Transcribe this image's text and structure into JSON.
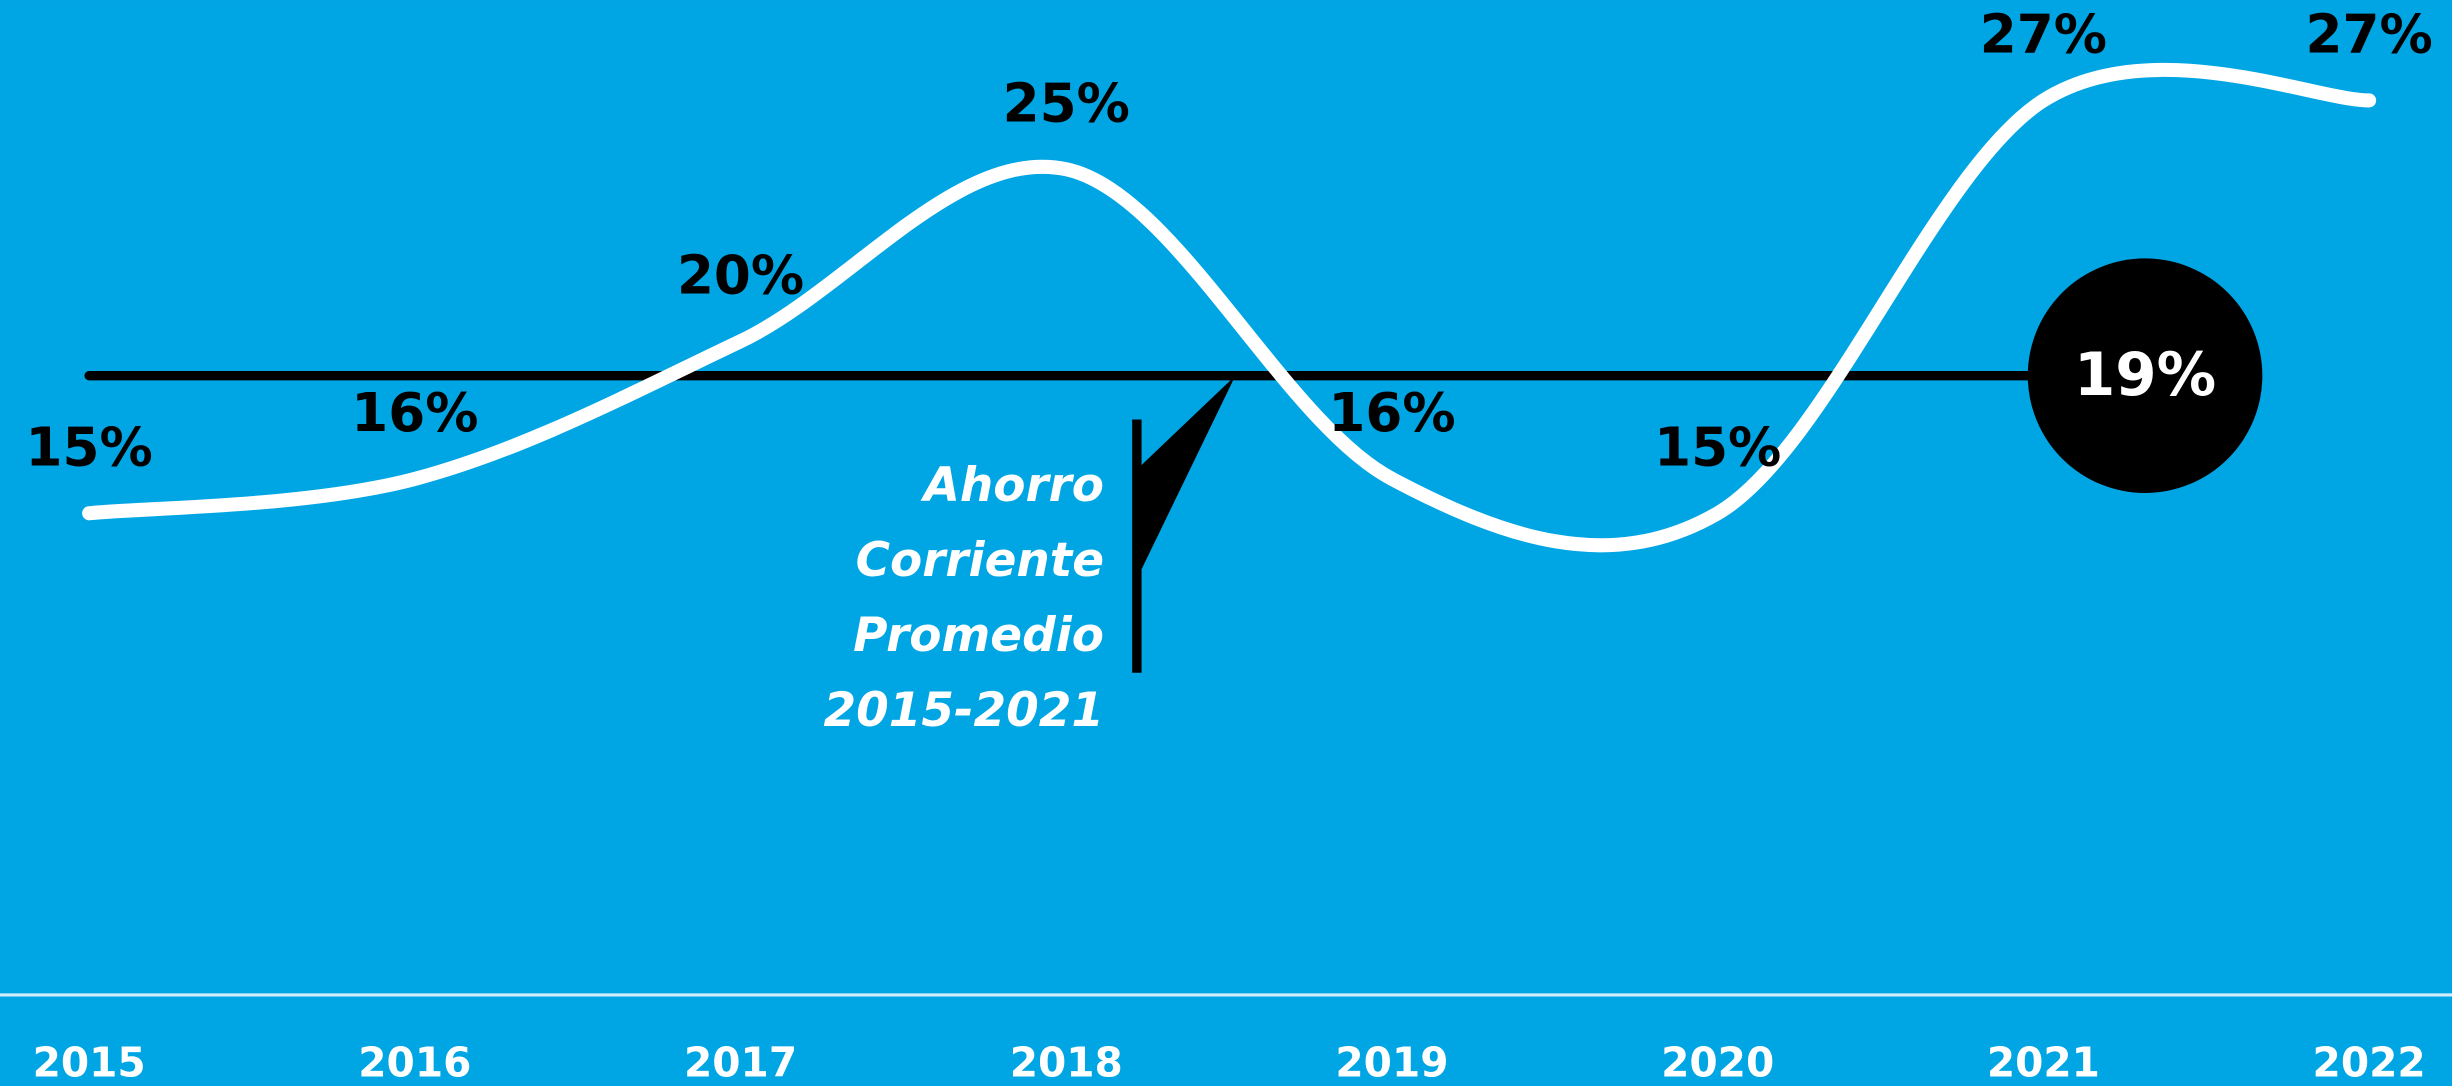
{
  "chart_data": {
    "type": "line",
    "categories": [
      "2015",
      "2016",
      "2017",
      "2018",
      "2019",
      "2020",
      "2021",
      "2022"
    ],
    "values": [
      15,
      16,
      20,
      25,
      16,
      15,
      27,
      27
    ],
    "value_labels": [
      "15%",
      "16%",
      "20%",
      "25%",
      "16%",
      "15%",
      "27%",
      "27%"
    ],
    "color": "#ffffff",
    "ylim": [
      1,
      29
    ],
    "average": {
      "value": 19,
      "label": "19%"
    },
    "annotation": [
      "Ahorro",
      "Corriente",
      "Promedio",
      "2015-2021"
    ]
  }
}
